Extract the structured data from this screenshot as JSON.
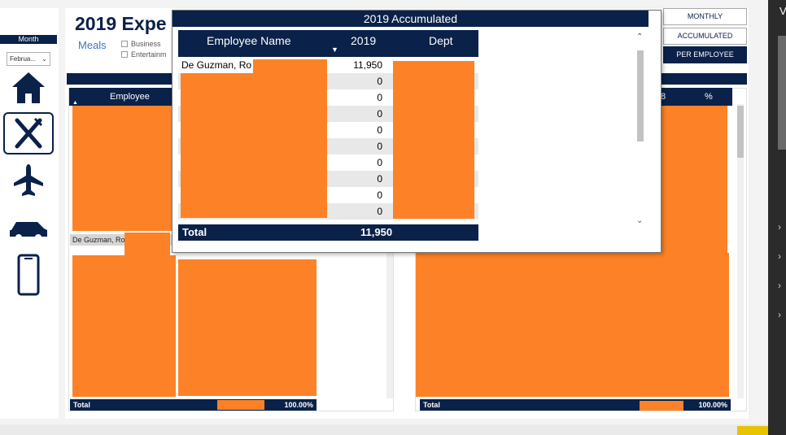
{
  "report_title": "2019 Expe",
  "slicer": {
    "label": "Month",
    "value": "Februa..."
  },
  "legend": {
    "meals_label": "Meals",
    "items": [
      "Business",
      "Entertainm"
    ]
  },
  "buttons": [
    "MONTHLY",
    "ACCUMULATED",
    "PER EMPLOYEE"
  ],
  "left_table": {
    "header": "Employee Name",
    "selected_row": "De Guzman, Ro",
    "total_label": "Total",
    "total_pct": "100.00%"
  },
  "right_table": {
    "col_a": "8",
    "col_b": "%",
    "total_label": "Total",
    "total_pct": "100.00%"
  },
  "popup": {
    "title": "2019 Accumulated",
    "columns": [
      "Employee Name",
      "2019",
      "Dept"
    ],
    "first_row_name": "De Guzman, Ro",
    "values": [
      "11,950",
      "0",
      "0",
      "0",
      "0",
      "0",
      "0",
      "0",
      "0",
      "0"
    ],
    "total_label": "Total",
    "total_value": "11,950"
  },
  "right_panel": {
    "letter": "V"
  },
  "colors": {
    "navy": "#0a2149",
    "redaction": "#fd8227",
    "accent": "#3b78b8"
  }
}
